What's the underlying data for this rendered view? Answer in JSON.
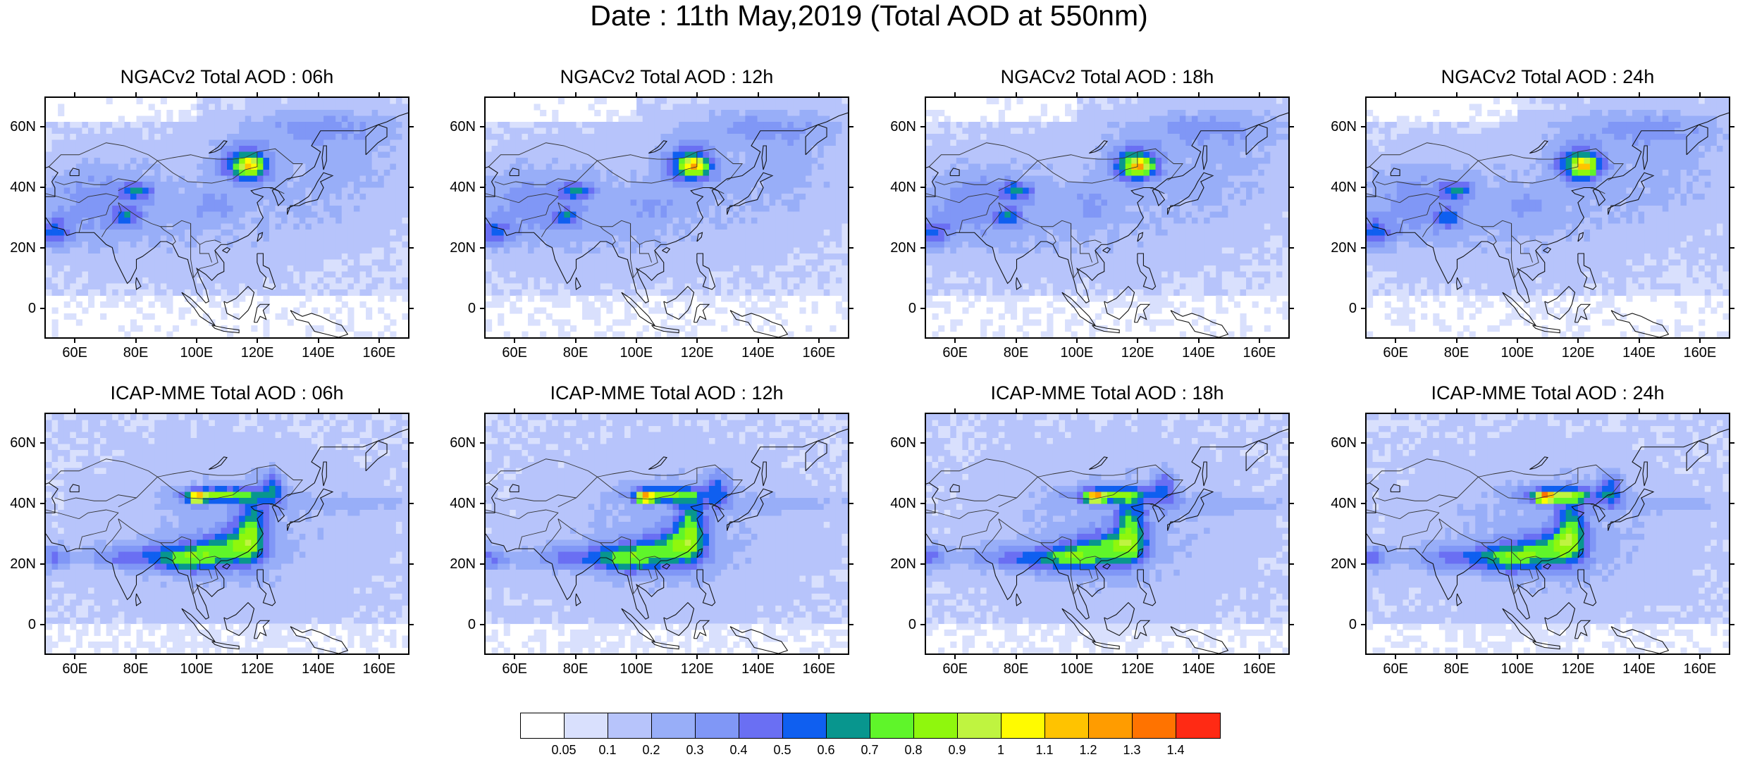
{
  "title": "Date : 11th May,2019 (Total AOD at 550nm)",
  "panels": [
    {
      "title": "NGACv2 Total AOD : 06h",
      "model": "ngac",
      "shift": 0
    },
    {
      "title": "NGACv2 Total AOD : 12h",
      "model": "ngac",
      "shift": 1
    },
    {
      "title": "NGACv2 Total AOD : 18h",
      "model": "ngac",
      "shift": 2
    },
    {
      "title": "NGACv2 Total AOD : 24h",
      "model": "ngac",
      "shift": 3
    },
    {
      "title": "ICAP-MME Total AOD : 06h",
      "model": "icap",
      "shift": 0
    },
    {
      "title": "ICAP-MME Total AOD : 12h",
      "model": "icap",
      "shift": 1
    },
    {
      "title": "ICAP-MME Total AOD : 18h",
      "model": "icap",
      "shift": 2
    },
    {
      "title": "ICAP-MME Total AOD : 24h",
      "model": "icap",
      "shift": 3
    }
  ],
  "lat_ticks": [
    "60N",
    "40N",
    "20N",
    "0"
  ],
  "lon_ticks": [
    "60E",
    "80E",
    "100E",
    "120E",
    "140E",
    "160E"
  ],
  "colorbar": {
    "labels": [
      "0.05",
      "0.1",
      "0.2",
      "0.3",
      "0.4",
      "0.5",
      "0.6",
      "0.7",
      "0.8",
      "0.9",
      "1",
      "1.1",
      "1.2",
      "1.3",
      "1.4"
    ],
    "colors": [
      "#ffffff",
      "#d9e0fd",
      "#b7c4fb",
      "#98aef8",
      "#8097f6",
      "#6a6ff3",
      "#0f5ff0",
      "#08968e",
      "#5ff52a",
      "#8ff70d",
      "#bff440",
      "#fffb00",
      "#ffc300",
      "#ff9c00",
      "#ff7300",
      "#ff2a14"
    ]
  },
  "map_extent": {
    "lon_min": 50,
    "lon_max": 170,
    "lat_min": -10,
    "lat_max": 70
  }
}
